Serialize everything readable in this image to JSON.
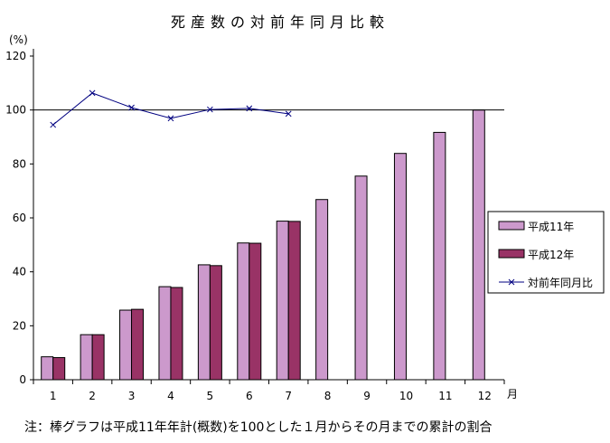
{
  "chart_data": {
    "type": "bar",
    "title": "死産数の対前年同月比較",
    "ylabel": "(%)",
    "xlabel": "月",
    "ylim": [
      0,
      120
    ],
    "yticks": [
      0,
      20,
      40,
      60,
      80,
      100,
      120
    ],
    "categories": [
      "1",
      "2",
      "3",
      "4",
      "5",
      "6",
      "7",
      "8",
      "9",
      "10",
      "11",
      "12"
    ],
    "grid": false,
    "reference_line": 100,
    "legend_position": "right",
    "series": [
      {
        "name": "平成11年",
        "type": "bar",
        "color": "#cc99cc",
        "values": [
          8.5,
          16.7,
          25.8,
          34.5,
          42.6,
          50.7,
          58.8,
          66.8,
          75.5,
          83.9,
          91.7,
          100
        ]
      },
      {
        "name": "平成12年",
        "type": "bar",
        "color": "#993366",
        "values": [
          8.2,
          16.7,
          26.1,
          34.2,
          42.3,
          50.6,
          58.7,
          null,
          null,
          null,
          null,
          null
        ]
      },
      {
        "name": "対前年同月比",
        "type": "line",
        "color": "#000080",
        "marker": "x",
        "values": [
          94.5,
          106.3,
          100.9,
          96.9,
          100.2,
          100.6,
          98.6,
          null,
          null,
          null,
          null,
          null
        ]
      }
    ],
    "note": "注：棒グラフは平成11年年計(概数)を100とした１月からその月までの累計の割合"
  }
}
